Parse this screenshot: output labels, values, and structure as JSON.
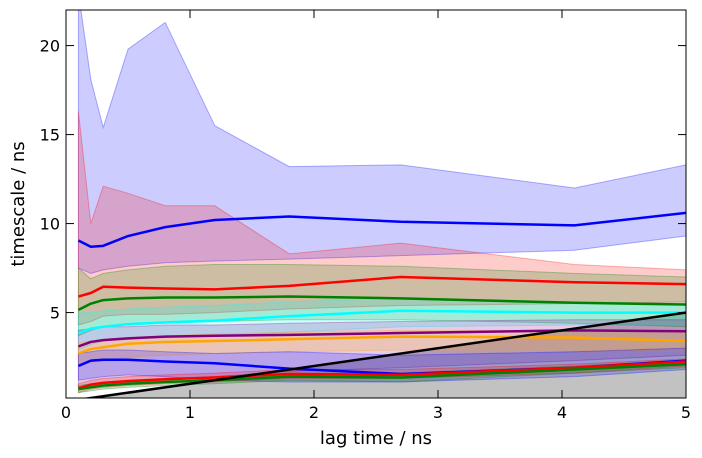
{
  "chart_data": {
    "type": "line",
    "xlabel": "lag time / ns",
    "ylabel": "timescale / ns",
    "xlim": [
      0,
      5
    ],
    "ylim": [
      0.2,
      22
    ],
    "xticks": [
      0,
      1,
      2,
      3,
      4,
      5
    ],
    "yticks": [
      5,
      10,
      15,
      20
    ],
    "grid": false,
    "legend": "none",
    "series": [
      {
        "color": "#0000ff",
        "x": [
          0.1,
          0.2,
          0.3,
          0.5,
          0.8,
          1.2,
          1.8,
          2.7,
          4.1,
          5.0
        ],
        "y": [
          9.05,
          8.7,
          8.75,
          9.3,
          9.8,
          10.2,
          10.4,
          10.1,
          9.9,
          10.6
        ],
        "upper": [
          23.0,
          18.1,
          15.4,
          19.8,
          21.3,
          15.5,
          13.2,
          13.3,
          12.0,
          13.3
        ],
        "lower": [
          7.5,
          7.2,
          7.4,
          7.6,
          7.8,
          7.9,
          8.0,
          8.2,
          8.5,
          9.3
        ]
      },
      {
        "color": "#ff0000",
        "x": [
          0.1,
          0.2,
          0.3,
          0.5,
          0.8,
          1.2,
          1.8,
          2.7,
          4.1,
          5.0
        ],
        "y": [
          5.9,
          6.1,
          6.45,
          6.4,
          6.35,
          6.3,
          6.5,
          7.0,
          6.7,
          6.6
        ],
        "upper": [
          16.3,
          10.0,
          12.1,
          11.7,
          11.0,
          11.0,
          8.3,
          8.9,
          7.7,
          7.4
        ],
        "lower": [
          4.3,
          4.5,
          4.8,
          4.9,
          4.9,
          5.0,
          5.2,
          5.4,
          5.5,
          5.6
        ]
      },
      {
        "color": "#008000",
        "x": [
          0.1,
          0.2,
          0.3,
          0.5,
          0.8,
          1.2,
          1.8,
          2.7,
          4.1,
          5.0
        ],
        "y": [
          5.15,
          5.5,
          5.7,
          5.8,
          5.85,
          5.85,
          5.9,
          5.8,
          5.55,
          5.45
        ],
        "upper": [
          7.5,
          6.9,
          7.2,
          7.4,
          7.6,
          7.7,
          7.7,
          7.6,
          7.2,
          7.0
        ],
        "lower": [
          3.7,
          4.0,
          4.2,
          4.3,
          4.4,
          4.5,
          4.6,
          4.6,
          4.4,
          4.2
        ]
      },
      {
        "color": "#00ffff",
        "x": [
          0.1,
          0.2,
          0.3,
          0.5,
          0.8,
          1.2,
          1.8,
          2.7,
          4.1,
          5.0
        ],
        "y": [
          3.85,
          4.1,
          4.2,
          4.35,
          4.45,
          4.55,
          4.8,
          5.1,
          5.0,
          5.0
        ],
        "upper": [
          5.0,
          5.0,
          5.1,
          5.2,
          5.3,
          5.4,
          5.6,
          5.8,
          5.6,
          5.5
        ],
        "lower": [
          2.9,
          3.2,
          3.4,
          3.5,
          3.6,
          3.7,
          3.9,
          4.2,
          4.3,
          4.3
        ]
      },
      {
        "color": "#800080",
        "x": [
          0.1,
          0.2,
          0.3,
          0.5,
          0.8,
          1.2,
          1.8,
          2.7,
          4.1,
          5.0
        ],
        "y": [
          3.1,
          3.35,
          3.45,
          3.55,
          3.65,
          3.7,
          3.75,
          3.85,
          4.0,
          3.95
        ],
        "upper": [
          4.0,
          4.1,
          4.2,
          4.2,
          4.3,
          4.3,
          4.4,
          4.5,
          4.6,
          4.6
        ],
        "lower": [
          0.8,
          0.9,
          1.0,
          1.1,
          1.2,
          1.4,
          1.7,
          1.9,
          2.3,
          2.6
        ]
      },
      {
        "color": "#ffa500",
        "x": [
          0.1,
          0.2,
          0.3,
          0.5,
          0.8,
          1.2,
          1.8,
          2.7,
          4.1,
          5.0
        ],
        "y": [
          2.7,
          2.95,
          3.05,
          3.25,
          3.35,
          3.4,
          3.5,
          3.65,
          3.6,
          3.4
        ],
        "upper": [
          3.3,
          3.4,
          3.5,
          3.6,
          3.7,
          3.8,
          3.9,
          4.0,
          4.0,
          3.9
        ],
        "lower": [
          2.0,
          2.2,
          2.3,
          2.5,
          2.6,
          2.7,
          2.8,
          2.9,
          2.9,
          2.8
        ]
      },
      {
        "color": "#0000ff",
        "x": [
          0.1,
          0.2,
          0.3,
          0.5,
          0.8,
          1.2,
          1.8,
          2.7,
          4.1,
          5.0
        ],
        "y": [
          2.0,
          2.3,
          2.35,
          2.35,
          2.25,
          2.15,
          1.85,
          1.55,
          1.9,
          2.3
        ],
        "upper": [
          2.7,
          2.8,
          2.9,
          2.9,
          2.8,
          2.7,
          2.8,
          2.6,
          2.8,
          3.0
        ],
        "lower": [
          1.2,
          1.3,
          1.4,
          1.5,
          1.4,
          1.2,
          1.1,
          1.1,
          1.4,
          1.8
        ]
      },
      {
        "color": "#ff0000",
        "x": [
          0.1,
          0.2,
          0.3,
          0.5,
          0.8,
          1.2,
          1.8,
          2.7,
          4.1,
          5.0
        ],
        "y": [
          0.75,
          0.95,
          1.05,
          1.15,
          1.25,
          1.35,
          1.55,
          1.5,
          1.9,
          2.25
        ],
        "upper": [
          1.0,
          1.2,
          1.3,
          1.4,
          1.5,
          1.6,
          1.8,
          1.8,
          2.1,
          2.4
        ],
        "lower": [
          0.5,
          0.7,
          0.8,
          0.9,
          1.0,
          1.1,
          1.3,
          1.3,
          1.6,
          2.0
        ]
      },
      {
        "color": "#008000",
        "x": [
          0.1,
          0.2,
          0.3,
          0.5,
          0.8,
          1.2,
          1.8,
          2.7,
          4.1,
          5.0
        ],
        "y": [
          0.7,
          0.8,
          0.9,
          1.0,
          1.1,
          1.2,
          1.4,
          1.35,
          1.8,
          2.1
        ],
        "upper": [
          0.9,
          1.0,
          1.1,
          1.2,
          1.3,
          1.4,
          1.6,
          1.6,
          2.0,
          2.3
        ],
        "lower": [
          0.5,
          0.6,
          0.7,
          0.8,
          0.9,
          1.0,
          1.2,
          1.1,
          1.6,
          1.9
        ]
      }
    ],
    "reference_line": {
      "color": "#000000",
      "fill_color": "#bfbfbf",
      "x": [
        0,
        5
      ],
      "y": [
        0,
        5
      ]
    }
  }
}
